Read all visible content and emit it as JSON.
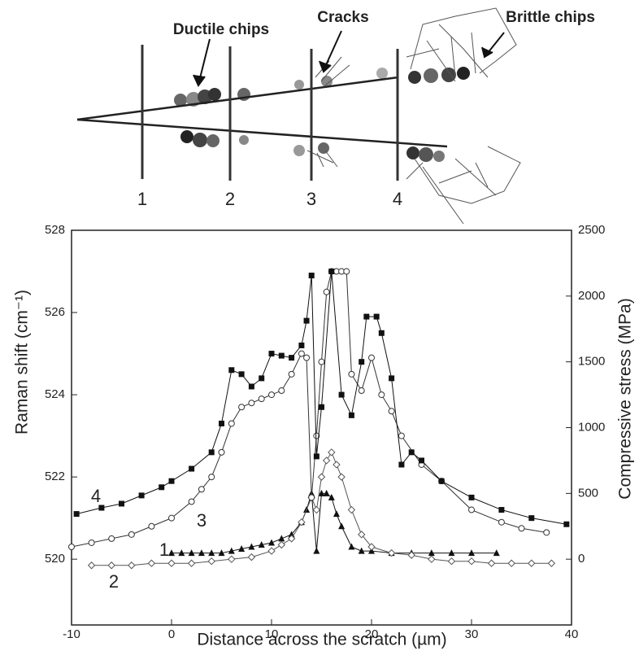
{
  "diagram": {
    "labels": [
      "Ductile chips",
      "Cracks",
      "Brittle chips"
    ],
    "sections": [
      "1",
      "2",
      "3",
      "4"
    ]
  },
  "chart_data": {
    "type": "line",
    "xlabel": "Distance across the scratch (µm)",
    "ylabel": "Raman shift (cm⁻¹)",
    "y2label": "Compressive stress (MPa)",
    "xlim": [
      -10,
      40
    ],
    "xticks": [
      -10,
      0,
      10,
      20,
      30,
      40
    ],
    "ylim": [
      518.4,
      528
    ],
    "yticks": [
      520,
      522,
      524,
      526,
      528
    ],
    "y2lim": [
      -500,
      2500
    ],
    "y2ticks": [
      0,
      500,
      1000,
      1500,
      2000,
      2500
    ],
    "series": [
      {
        "name": "1",
        "color": "#111111",
        "marker": "triangle",
        "x": [
          0,
          1,
          2,
          3,
          4,
          5,
          6,
          7,
          8,
          9,
          10,
          11,
          12,
          13,
          13.5,
          14,
          14.5,
          15,
          15.5,
          16,
          16.5,
          17,
          18,
          19,
          20,
          22,
          24,
          26,
          28,
          30,
          32.5
        ],
        "values": [
          520.15,
          520.15,
          520.15,
          520.15,
          520.15,
          520.15,
          520.2,
          520.25,
          520.3,
          520.35,
          520.4,
          520.5,
          520.6,
          520.9,
          521.2,
          521.6,
          520.2,
          521.6,
          521.6,
          521.5,
          521.1,
          520.8,
          520.3,
          520.2,
          520.2,
          520.15,
          520.15,
          520.15,
          520.15,
          520.15,
          520.15
        ]
      },
      {
        "name": "2",
        "color": "#555555",
        "marker": "diamond",
        "x": [
          -8,
          -6,
          -4,
          -2,
          0,
          2,
          4,
          6,
          8,
          10,
          11,
          12,
          13,
          14,
          14.5,
          15,
          15.5,
          16,
          16.5,
          17,
          18,
          19,
          20,
          22,
          24,
          26,
          28,
          30,
          32,
          34,
          36,
          38
        ],
        "values": [
          519.85,
          519.85,
          519.85,
          519.9,
          519.9,
          519.9,
          519.95,
          520.0,
          520.05,
          520.2,
          520.35,
          520.5,
          520.9,
          521.5,
          521.2,
          522.0,
          522.4,
          522.6,
          522.3,
          522.0,
          521.2,
          520.6,
          520.3,
          520.15,
          520.1,
          520.0,
          519.95,
          519.95,
          519.9,
          519.9,
          519.9,
          519.9
        ]
      },
      {
        "name": "3",
        "color": "#333333",
        "marker": "circle",
        "x": [
          -10,
          -8,
          -6,
          -4,
          -2,
          0,
          2,
          3,
          4,
          5,
          6,
          7,
          8,
          9,
          10,
          11,
          12,
          13,
          13.5,
          14,
          14.5,
          15,
          15.5,
          16,
          16.5,
          17,
          17.5,
          18,
          19,
          20,
          21,
          22,
          23,
          25,
          27,
          30,
          33,
          35,
          37.5
        ],
        "values": [
          520.3,
          520.4,
          520.5,
          520.6,
          520.8,
          521.0,
          521.4,
          521.7,
          522.0,
          522.6,
          523.3,
          523.7,
          523.8,
          523.9,
          524.0,
          524.1,
          524.5,
          525.0,
          524.9,
          521.5,
          523.0,
          524.8,
          526.5,
          527.0,
          527.0,
          527.0,
          527.0,
          524.5,
          524.1,
          524.9,
          524.0,
          523.6,
          523.0,
          522.3,
          521.9,
          521.2,
          520.9,
          520.75,
          520.65
        ]
      },
      {
        "name": "4",
        "color": "#111111",
        "marker": "square",
        "x": [
          -9.5,
          -7,
          -5,
          -3,
          -1,
          0,
          2,
          4,
          5,
          6,
          7,
          8,
          9,
          10,
          11,
          12,
          13,
          13.5,
          14,
          14.5,
          15,
          16,
          17,
          18,
          19,
          19.5,
          20.5,
          21,
          22,
          23,
          24,
          25,
          27,
          30,
          33,
          36,
          39.5
        ],
        "values": [
          521.1,
          521.25,
          521.35,
          521.55,
          521.75,
          521.9,
          522.2,
          522.6,
          523.3,
          524.6,
          524.5,
          524.2,
          524.4,
          525.0,
          524.95,
          524.9,
          525.2,
          525.8,
          526.9,
          522.5,
          523.7,
          527.0,
          524.0,
          523.5,
          524.8,
          525.9,
          525.9,
          525.5,
          524.4,
          522.3,
          522.6,
          522.4,
          521.9,
          521.5,
          521.2,
          521.0,
          520.85
        ]
      }
    ]
  }
}
